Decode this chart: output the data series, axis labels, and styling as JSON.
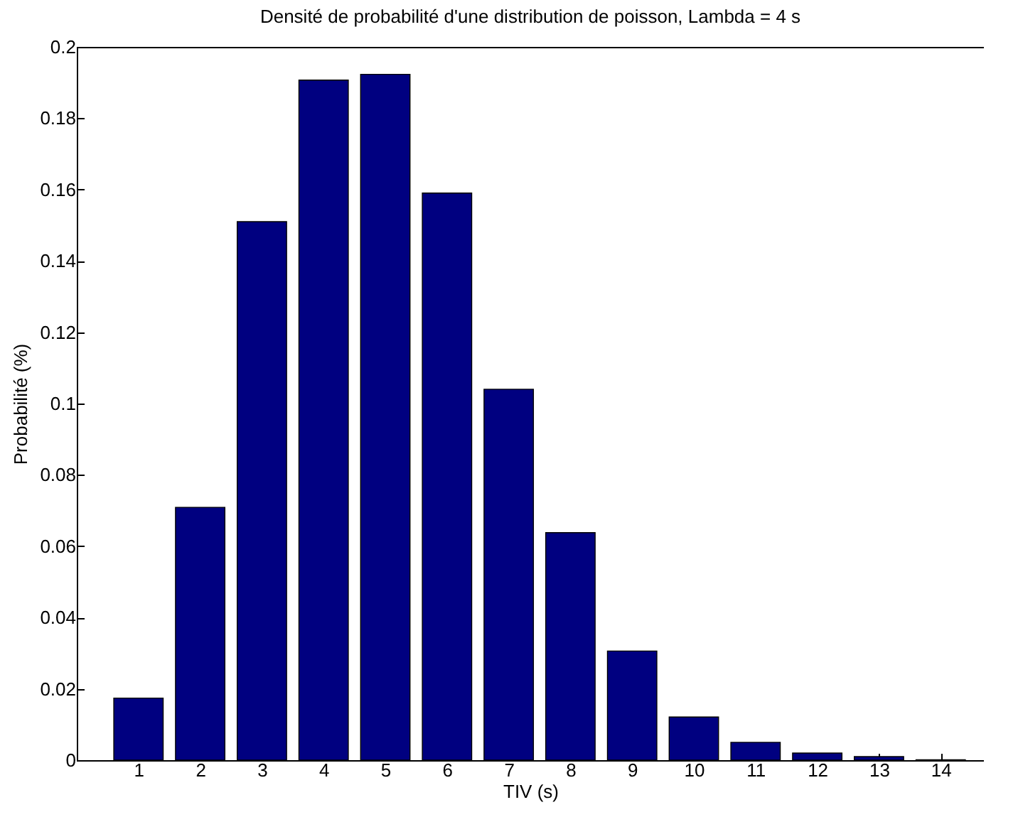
{
  "chart_data": {
    "type": "bar",
    "title": "Densité de probabilité d'une distribution de poisson, Lambda = 4 s",
    "xlabel": "TIV (s)",
    "ylabel": "Probabilité (%)",
    "x": [
      1,
      2,
      3,
      4,
      5,
      6,
      7,
      8,
      9,
      10,
      11,
      12,
      13,
      14
    ],
    "values": [
      0.0174,
      0.0709,
      0.151,
      0.1907,
      0.1923,
      0.159,
      0.104,
      0.0638,
      0.0306,
      0.0121,
      0.005,
      0.002,
      0.001,
      0.0001
    ],
    "color": "#000080",
    "xlim": [
      0,
      14.7
    ],
    "xticks": [
      1,
      2,
      3,
      4,
      5,
      6,
      7,
      8,
      9,
      10,
      11,
      12,
      13,
      14
    ],
    "ylim": [
      0,
      0.2
    ],
    "yticks": [
      0,
      0.02,
      0.04,
      0.06,
      0.08,
      0.1,
      0.12,
      0.14,
      0.16,
      0.18,
      0.2
    ],
    "grid": false
  }
}
